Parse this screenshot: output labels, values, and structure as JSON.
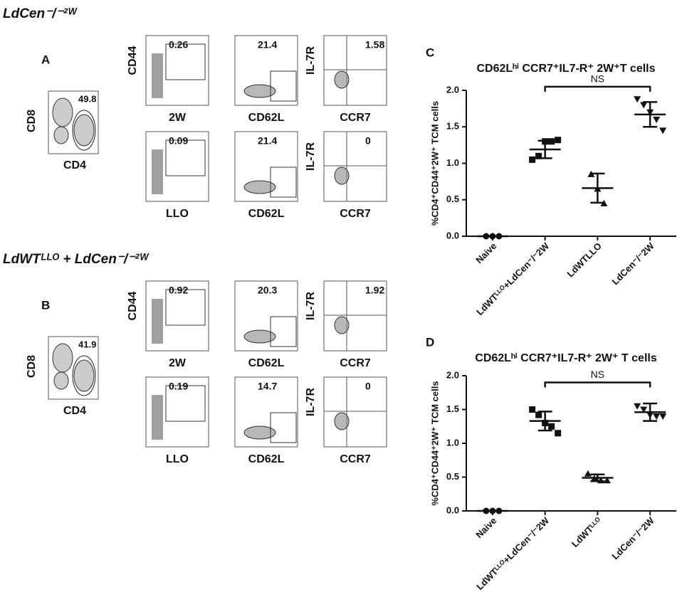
{
  "flow": {
    "sections": [
      {
        "title": "LdCen⁻/⁻²ᵂ",
        "letter": "A",
        "gate": {
          "y": "CD8",
          "x": "CD4",
          "value": 49.8
        },
        "rows": [
          [
            {
              "y": "CD44",
              "x": "2W",
              "value": 0.26
            },
            {
              "x": "CD62L",
              "value": 21.4
            },
            {
              "y": "IL-7R",
              "x": "CCR7",
              "value": 1.58
            }
          ],
          [
            {
              "x": "LLO",
              "value": 0.09
            },
            {
              "x": "CD62L",
              "value": 21.4
            },
            {
              "y": "IL-7R",
              "x": "CCR7",
              "value": 0
            }
          ]
        ]
      },
      {
        "title": "LdWTᴸᴸᴼ + LdCen⁻/⁻²ᵂ",
        "letter": "B",
        "gate": {
          "y": "CD8",
          "x": "CD4",
          "value": 41.9
        },
        "rows": [
          [
            {
              "y": "CD44",
              "x": "2W",
              "value": 0.92
            },
            {
              "x": "CD62L",
              "value": 20.3
            },
            {
              "y": "IL-7R",
              "x": "CCR7",
              "value": 1.92
            }
          ],
          [
            {
              "x": "LLO",
              "value": 0.19
            },
            {
              "x": "CD62L",
              "value": 14.7
            },
            {
              "y": "IL-7R",
              "x": "CCR7",
              "value": 0
            }
          ]
        ]
      }
    ]
  },
  "chart_data": [
    {
      "type": "scatter",
      "letter": "C",
      "title": "CD62Lʰⁱ CCR7⁺IL7-R⁺ 2W⁺T cells",
      "y_label": "%CD4⁺CD44⁺2W⁺ TCM cells",
      "categories": [
        "Naive",
        "LdWTᴸᴸᴼ+LdCen⁻/⁻2W",
        "LdWTLLO",
        "LdCen⁻/⁻2W"
      ],
      "markers": [
        "circle",
        "square",
        "triangle",
        "down-triangle"
      ],
      "color": "#111111",
      "points": [
        [
          0,
          0,
          0
        ],
        [
          1.05,
          1.1,
          1.3,
          1.3,
          1.32
        ],
        [
          0.85,
          0.65,
          0.45
        ],
        [
          1.88,
          1.8,
          1.7,
          1.6,
          1.45
        ]
      ],
      "means": [
        0,
        1.19,
        0.66,
        1.67
      ],
      "errors": [
        0,
        0.12,
        0.2,
        0.17
      ],
      "bracket": {
        "label": "NS",
        "y": 2.05
      },
      "ylim": [
        0,
        2
      ],
      "yticks": [
        {
          "value": 0,
          "label": "0.0"
        },
        {
          "value": 0.5,
          "label": "0.5"
        },
        {
          "value": 1,
          "label": "1.0"
        },
        {
          "value": 1.5,
          "label": "1.5"
        },
        {
          "value": 2,
          "label": "2.0"
        }
      ]
    },
    {
      "type": "scatter",
      "letter": "D",
      "title": "CD62Lʰⁱ CCR7⁺IL7-R⁺ 2W⁺ T cells",
      "y_label": "%CD4⁺CD44⁺2W⁺ TCM cells",
      "categories": [
        "Naive",
        "LdWTᴸᴸᴼ+LdCen⁻/⁻2W",
        "LdWTᴸᴸᴼ",
        "LdCen⁻/⁻2W"
      ],
      "markers": [
        "circle",
        "square",
        "triangle",
        "down-triangle"
      ],
      "color": "#111111",
      "points": [
        [
          0,
          0,
          0
        ],
        [
          1.5,
          1.42,
          1.3,
          1.25,
          1.15
        ],
        [
          0.55,
          0.48,
          0.45,
          0.45
        ],
        [
          1.55,
          1.5,
          1.42,
          1.4,
          1.4
        ]
      ],
      "means": [
        0,
        1.33,
        0.49,
        1.46
      ],
      "errors": [
        0,
        0.14,
        0.05,
        0.13
      ],
      "bracket": {
        "label": "NS",
        "y": 1.9
      },
      "ylim": [
        0,
        2
      ],
      "yticks": [
        {
          "value": 0,
          "label": "0.0"
        },
        {
          "value": 0.5,
          "label": "0.5"
        },
        {
          "value": 1,
          "label": "1.0"
        },
        {
          "value": 1.5,
          "label": "1.5"
        },
        {
          "value": 2,
          "label": "2.0"
        }
      ]
    }
  ]
}
